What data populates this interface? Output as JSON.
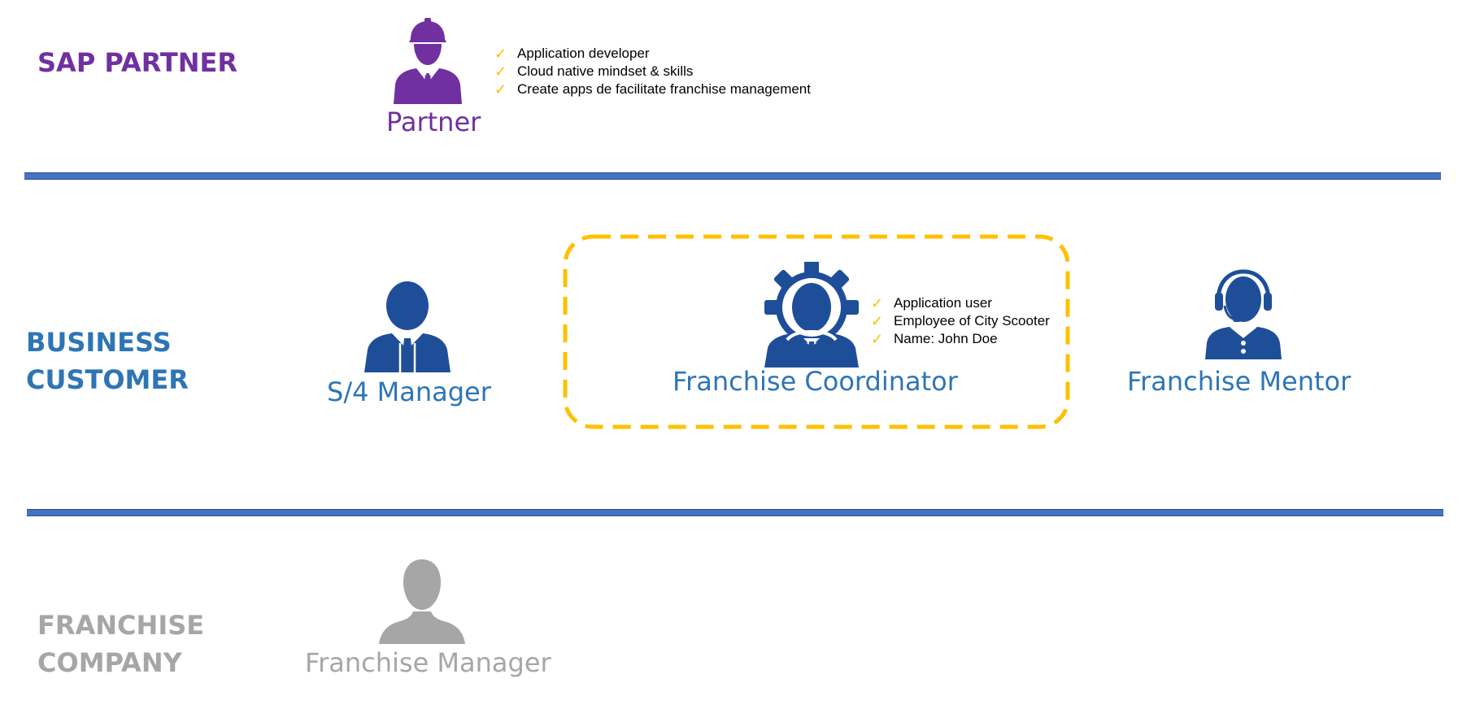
{
  "colors": {
    "partner": "#7030a0",
    "business": "#2e75b6",
    "icon_blue": "#1f4e99",
    "franchise": "#a6a6a6",
    "divider": "#4472c4",
    "highlight": "#ffc000",
    "check": "#ffc000"
  },
  "sections": {
    "sap_partner": {
      "title": "SAP PARTNER"
    },
    "business_customer": {
      "title_line1": "BUSINESS",
      "title_line2": "CUSTOMER"
    },
    "franchise_company": {
      "title_line1": "FRANCHISE",
      "title_line2": "COMPANY"
    }
  },
  "personas": {
    "partner": {
      "label": "Partner",
      "icon": "construction-worker-icon",
      "traits": [
        "Application developer",
        "Cloud native mindset & skills",
        "Create apps de facilitate franchise management"
      ]
    },
    "s4_manager": {
      "label": "S/4 Manager",
      "icon": "businessman-icon"
    },
    "franchise_coordinator": {
      "label": "Franchise Coordinator",
      "icon": "gear-person-icon",
      "traits": [
        "Application user",
        "Employee of City Scooter",
        "Name: John Doe"
      ]
    },
    "franchise_mentor": {
      "label": "Franchise Mentor",
      "icon": "headset-person-icon"
    },
    "franchise_manager": {
      "label": "Franchise Manager",
      "icon": "person-silhouette-icon"
    }
  },
  "check_glyph": "✓"
}
